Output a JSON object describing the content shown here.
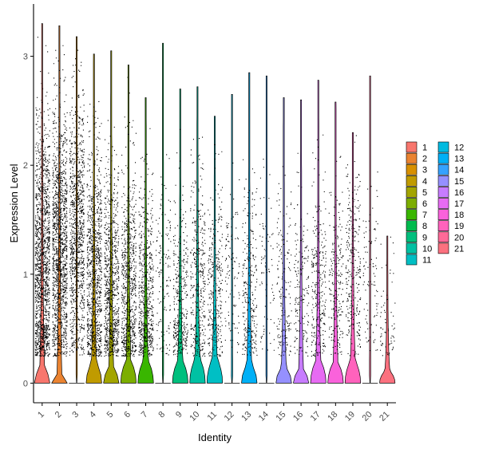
{
  "chart_data": {
    "type": "violin",
    "xlabel": "Identity",
    "ylabel": "Expression Level",
    "ylim": [
      -0.18,
      3.48
    ],
    "yticks": [
      0,
      1,
      2,
      3
    ],
    "grid": false,
    "legend_position": "right",
    "legend_columns": 2,
    "series": [
      {
        "name": "1",
        "color": "#F8766D",
        "max": 3.3,
        "violin_peak": 0.14,
        "cell_density": 1.0,
        "jitter_median": 1.05
      },
      {
        "name": "2",
        "color": "#EA8331",
        "max": 3.28,
        "violin_peak": 0.08,
        "cell_density": 0.95,
        "jitter_median": 1.2
      },
      {
        "name": "3",
        "color": "#D89000",
        "max": 3.18,
        "violin_peak": 0.0,
        "cell_density": 0.7,
        "jitter_median": 1.4
      },
      {
        "name": "4",
        "color": "#C09B00",
        "max": 3.02,
        "violin_peak": 0.2,
        "cell_density": 0.65,
        "jitter_median": 0.95
      },
      {
        "name": "5",
        "color": "#A3A500",
        "max": 3.05,
        "violin_peak": 0.14,
        "cell_density": 0.55,
        "jitter_median": 0.85
      },
      {
        "name": "6",
        "color": "#7CAE00",
        "max": 2.92,
        "violin_peak": 0.22,
        "cell_density": 0.5,
        "jitter_median": 0.85
      },
      {
        "name": "7",
        "color": "#39B600",
        "max": 2.62,
        "violin_peak": 0.22,
        "cell_density": 0.4,
        "jitter_median": 0.8
      },
      {
        "name": "8",
        "color": "#00BB4E",
        "max": 3.12,
        "violin_peak": 0.0,
        "cell_density": 0.08,
        "jitter_median": 1.0
      },
      {
        "name": "9",
        "color": "#00BF7D",
        "max": 2.7,
        "violin_peak": 0.22,
        "cell_density": 0.22,
        "jitter_median": 0.7
      },
      {
        "name": "10",
        "color": "#00C1A3",
        "max": 2.72,
        "violin_peak": 0.24,
        "cell_density": 0.25,
        "jitter_median": 0.85
      },
      {
        "name": "11",
        "color": "#00BFC4",
        "max": 2.45,
        "violin_peak": 0.24,
        "cell_density": 0.2,
        "jitter_median": 0.85
      },
      {
        "name": "12",
        "color": "#00BAE0",
        "max": 2.65,
        "violin_peak": 0.0,
        "cell_density": 0.06,
        "jitter_median": 1.0
      },
      {
        "name": "13",
        "color": "#00B0F6",
        "max": 2.85,
        "violin_peak": 0.18,
        "cell_density": 0.18,
        "jitter_median": 0.85
      },
      {
        "name": "14",
        "color": "#35A2FF",
        "max": 2.82,
        "violin_peak": 0.0,
        "cell_density": 0.04,
        "jitter_median": 1.0
      },
      {
        "name": "15",
        "color": "#9590FF",
        "max": 2.62,
        "violin_peak": 0.15,
        "cell_density": 0.1,
        "jitter_median": 0.8
      },
      {
        "name": "16",
        "color": "#C77CFF",
        "max": 2.6,
        "violin_peak": 0.12,
        "cell_density": 0.1,
        "jitter_median": 0.8
      },
      {
        "name": "17",
        "color": "#E76BF3",
        "max": 2.78,
        "violin_peak": 0.22,
        "cell_density": 0.18,
        "jitter_median": 0.9
      },
      {
        "name": "18",
        "color": "#FA62DB",
        "max": 2.58,
        "violin_peak": 0.2,
        "cell_density": 0.14,
        "jitter_median": 0.9
      },
      {
        "name": "19",
        "color": "#FF62BC",
        "max": 2.3,
        "violin_peak": 0.22,
        "cell_density": 0.18,
        "jitter_median": 1.0
      },
      {
        "name": "20",
        "color": "#FF6A98",
        "max": 2.82,
        "violin_peak": 0.0,
        "cell_density": 0.05,
        "jitter_median": 1.0
      },
      {
        "name": "21",
        "color": "#FC717F",
        "max": 1.35,
        "violin_peak": 0.12,
        "cell_density": 0.03,
        "jitter_median": 0.5
      }
    ]
  }
}
